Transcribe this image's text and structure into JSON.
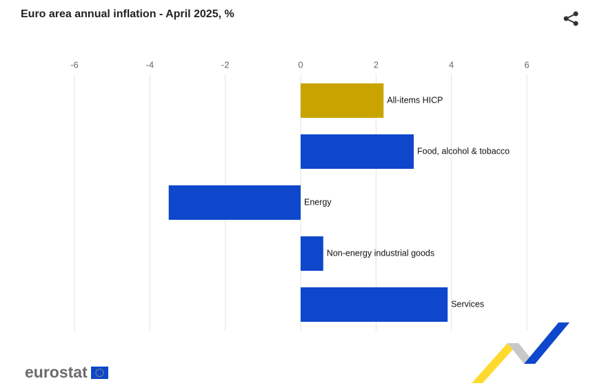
{
  "chart_data": {
    "type": "hbar",
    "title": "Euro area annual inflation - April 2025, %",
    "categories": [
      "All-items HICP",
      "Food, alcohol & tobacco",
      "Energy",
      "Non-energy industrial goods",
      "Services"
    ],
    "values": [
      2.2,
      3.0,
      -3.5,
      0.6,
      3.9
    ],
    "colors": [
      "#c9a400",
      "#0e47cb",
      "#0e47cb",
      "#0e47cb",
      "#0e47cb"
    ],
    "xlim": [
      -6,
      6
    ],
    "xticks": [
      -6,
      -4,
      -2,
      0,
      2,
      4,
      6
    ],
    "grid": true
  },
  "logo": "eurostat"
}
